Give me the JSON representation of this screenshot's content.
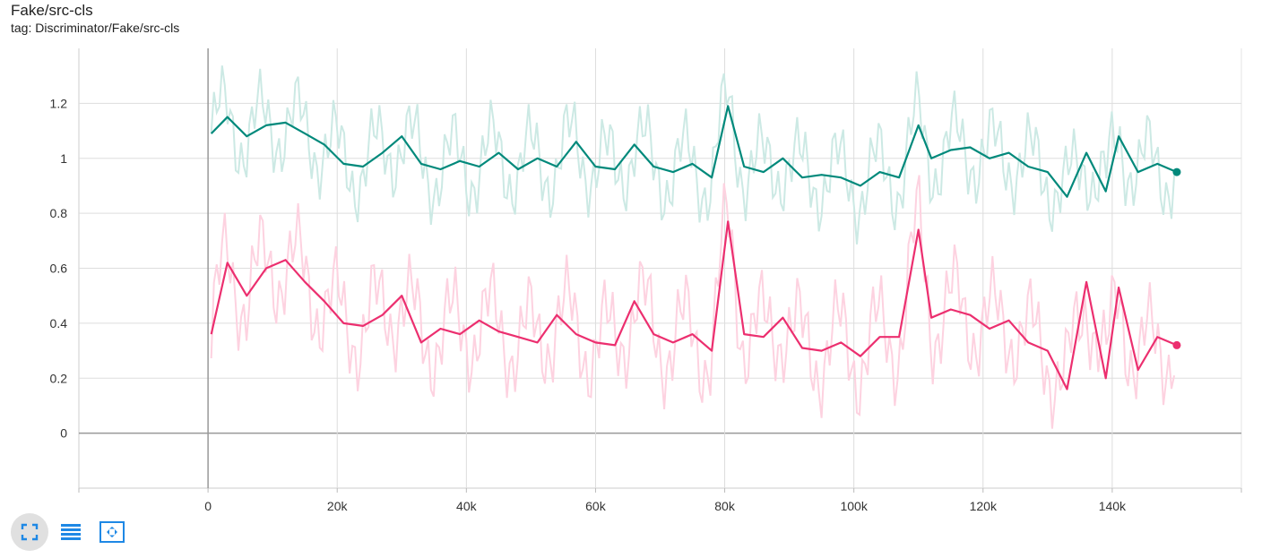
{
  "header": {
    "title": "Fake/src-cls",
    "tag": "tag: Discriminator/Fake/src-cls"
  },
  "toolbar": {
    "buttons": [
      {
        "icon": "fullscreen-icon",
        "active": true
      },
      {
        "icon": "list-icon",
        "active": false
      },
      {
        "icon": "fit-domain-icon",
        "active": false
      }
    ]
  },
  "colors": {
    "teal": "#00897b",
    "teal_raw": "#cce9e4",
    "pink": "#ec2f6f",
    "pink_raw": "#fdd2e0",
    "grid": "#dddddd",
    "axis": "#999999"
  },
  "chart_data": {
    "type": "line",
    "title": "Fake/src-cls",
    "xlabel": "",
    "ylabel": "",
    "xlim": [
      -20000,
      160000
    ],
    "ylim": [
      -0.2,
      1.4
    ],
    "xticks": [
      0,
      20000,
      40000,
      60000,
      80000,
      100000,
      120000,
      140000
    ],
    "xtick_labels": [
      "0",
      "20k",
      "40k",
      "60k",
      "80k",
      "100k",
      "120k",
      "140k"
    ],
    "yticks": [
      0,
      0.2,
      0.4,
      0.6,
      0.8,
      1,
      1.2
    ],
    "ytick_labels": [
      "0",
      "0.2",
      "0.4",
      "0.6",
      "0.8",
      "1",
      "1.2"
    ],
    "grid": true,
    "legend": "none",
    "series": [
      {
        "color": "#00897b",
        "x": [
          500,
          3000,
          6000,
          9000,
          12000,
          15000,
          18000,
          21000,
          24000,
          27000,
          30000,
          33000,
          36000,
          39000,
          42000,
          45000,
          48000,
          51000,
          54000,
          57000,
          60000,
          63000,
          66000,
          69000,
          72000,
          75000,
          78000,
          80500,
          83000,
          86000,
          89000,
          92000,
          95000,
          98000,
          101000,
          104000,
          107000,
          110000,
          112000,
          115000,
          118000,
          121000,
          124000,
          127000,
          130000,
          133000,
          136000,
          139000,
          141000,
          144000,
          147000,
          150000
        ],
        "y": [
          1.09,
          1.15,
          1.08,
          1.12,
          1.13,
          1.09,
          1.05,
          0.98,
          0.97,
          1.02,
          1.08,
          0.98,
          0.96,
          0.99,
          0.97,
          1.02,
          0.96,
          1.0,
          0.97,
          1.06,
          0.97,
          0.96,
          1.05,
          0.97,
          0.95,
          0.98,
          0.93,
          1.19,
          0.97,
          0.95,
          1.0,
          0.93,
          0.94,
          0.93,
          0.9,
          0.95,
          0.93,
          1.12,
          1.0,
          1.03,
          1.04,
          1.0,
          1.02,
          0.97,
          0.95,
          0.86,
          1.02,
          0.88,
          1.08,
          0.95,
          0.98,
          0.95
        ]
      },
      {
        "color": "#ec2f6f",
        "x": [
          500,
          3000,
          6000,
          9000,
          12000,
          15000,
          18000,
          21000,
          24000,
          27000,
          30000,
          33000,
          36000,
          39000,
          42000,
          45000,
          48000,
          51000,
          54000,
          57000,
          60000,
          63000,
          66000,
          69000,
          72000,
          75000,
          78000,
          80500,
          83000,
          86000,
          89000,
          92000,
          95000,
          98000,
          101000,
          104000,
          107000,
          110000,
          112000,
          115000,
          118000,
          121000,
          124000,
          127000,
          130000,
          133000,
          136000,
          139000,
          141000,
          144000,
          147000,
          150000
        ],
        "y": [
          0.36,
          0.62,
          0.5,
          0.6,
          0.63,
          0.55,
          0.48,
          0.4,
          0.39,
          0.43,
          0.5,
          0.33,
          0.38,
          0.36,
          0.41,
          0.37,
          0.35,
          0.33,
          0.43,
          0.36,
          0.33,
          0.32,
          0.48,
          0.36,
          0.33,
          0.36,
          0.3,
          0.77,
          0.36,
          0.35,
          0.42,
          0.31,
          0.3,
          0.33,
          0.28,
          0.35,
          0.35,
          0.74,
          0.42,
          0.45,
          0.43,
          0.38,
          0.41,
          0.33,
          0.3,
          0.16,
          0.55,
          0.2,
          0.53,
          0.23,
          0.35,
          0.32
        ]
      }
    ]
  }
}
